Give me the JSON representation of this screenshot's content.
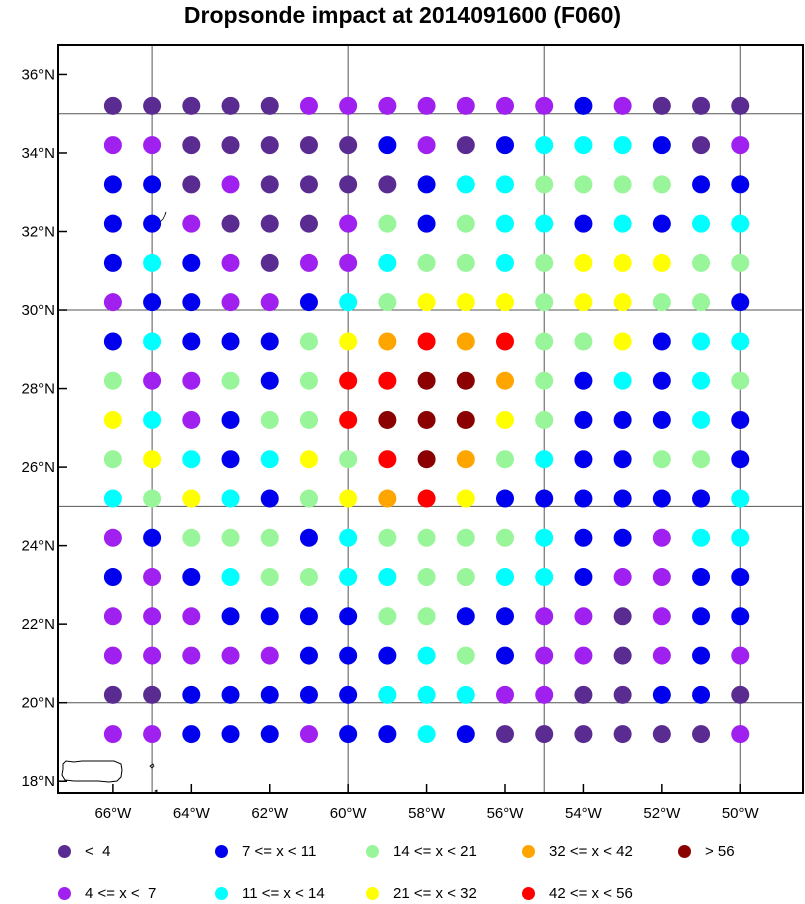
{
  "title": "Dropsonde impact at 2014091600 (F060)",
  "map": {
    "lon_range": [
      -67.4,
      -48.4
    ],
    "lat_range": [
      17.7,
      36.75
    ],
    "lat_ticks": [
      {
        "value": 18,
        "label": "18°N"
      },
      {
        "value": 20,
        "label": "20°N"
      },
      {
        "value": 22,
        "label": "22°N"
      },
      {
        "value": 24,
        "label": "24°N"
      },
      {
        "value": 26,
        "label": "26°N"
      },
      {
        "value": 28,
        "label": "28°N"
      },
      {
        "value": 30,
        "label": "30°N"
      },
      {
        "value": 32,
        "label": "32°N"
      },
      {
        "value": 34,
        "label": "34°N"
      },
      {
        "value": 36,
        "label": "36°N"
      }
    ],
    "lon_ticks": [
      {
        "value": -66,
        "label": "66°W"
      },
      {
        "value": -64,
        "label": "64°W"
      },
      {
        "value": -62,
        "label": "62°W"
      },
      {
        "value": -60,
        "label": "60°W"
      },
      {
        "value": -58,
        "label": "58°W"
      },
      {
        "value": -56,
        "label": "56°W"
      },
      {
        "value": -54,
        "label": "54°W"
      },
      {
        "value": -52,
        "label": "52°W"
      },
      {
        "value": -50,
        "label": "50°W"
      }
    ],
    "grid_lons": [
      -65,
      -60,
      -55,
      -50
    ],
    "grid_lats": [
      20,
      25,
      30,
      35
    ],
    "dot_lons": [
      -66,
      -65,
      -64,
      -63,
      -62,
      -61,
      -60,
      -59,
      -58,
      -57,
      -56,
      -55,
      -54,
      -53,
      -52,
      -51,
      -50
    ],
    "dot_lats": [
      35.2,
      34.2,
      33.2,
      32.2,
      31.2,
      30.2,
      29.2,
      28.2,
      27.2,
      26.2,
      25.2,
      24.2,
      23.2,
      22.2,
      21.2,
      20.2,
      19.2
    ],
    "impact_classes": [
      "PPPPPGGGGGGGBGPPP",
      "GGPPPPPBGPBCCCBPG",
      "BBPGPPPPBCCLLLLBB",
      "BBGPPPGLBLCCBCBCC",
      "BCBGPGGCLLCLYYYLL",
      "GBBGGBCLYYYLYYLLB",
      "BCBBBLYORORLLYBCC",
      "LGGLBLRRMMOLBCBCL",
      "YCGBLLRMMMYLBBBCB",
      "LYCBCYLRMOLCBBLLB",
      "CLYCBLYORYBBBBBBC",
      "GBLLLBCLLLLCBBGCC",
      "BGBCLLCCLLCCBGGBB",
      "GGGBBBBLLBBGGPGBB",
      "GGGGGBBBCLBGGPGBG",
      "PPBBBBBCCCGGPPBBP",
      "GGBBBGBBCBPPPPPPG"
    ]
  },
  "legend": {
    "colors": {
      "P": "#5a2c91",
      "G": "#a020f0",
      "B": "#0000ee",
      "C": "#00ffff",
      "L": "#99f599",
      "Y": "#ffff00",
      "O": "#ffa500",
      "R": "#ff0000",
      "M": "#8b0000"
    },
    "row1": [
      {
        "key": "P",
        "label": "<  4"
      },
      {
        "key": "B",
        "label": "7 <= x < 11"
      },
      {
        "key": "L",
        "label": "14 <= x < 21"
      },
      {
        "key": "O",
        "label": "32 <= x < 42"
      },
      {
        "key": "M",
        "label": "> 56"
      }
    ],
    "row2": [
      {
        "key": "G",
        "label": "4 <= x <  7"
      },
      {
        "key": "C",
        "label": "11 <= x < 14"
      },
      {
        "key": "Y",
        "label": "21 <= x < 32"
      },
      {
        "key": "R",
        "label": "42 <= x < 56"
      }
    ]
  }
}
